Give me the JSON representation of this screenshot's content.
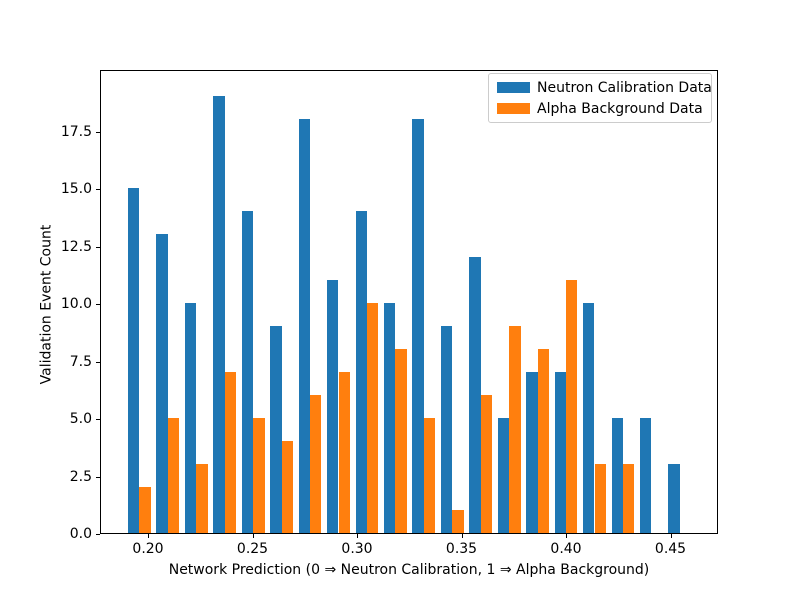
{
  "chart_data": {
    "type": "bar",
    "title": "",
    "xlabel": "Network Prediction (0 ⇒ Neutron Calibration, 1 ⇒ Alpha Background)",
    "ylabel": "Validation Event Count",
    "x_tick_values": [
      0.2,
      0.25,
      0.3,
      0.35,
      0.4,
      0.45
    ],
    "x_tick_labels": [
      "0.20",
      "0.25",
      "0.30",
      "0.35",
      "0.40",
      "0.45"
    ],
    "y_tick_values": [
      0.0,
      2.5,
      5.0,
      7.5,
      10.0,
      12.5,
      15.0,
      17.5
    ],
    "y_tick_labels": [
      "0.0",
      "2.5",
      "5.0",
      "7.5",
      "10.0",
      "12.5",
      "15.0",
      "17.5"
    ],
    "xlim": [
      0.177,
      0.4727
    ],
    "ylim": [
      0,
      20.2
    ],
    "grid": false,
    "bin_width_x": 0.005454,
    "bin_left_x": [
      0.1904,
      0.204,
      0.2176,
      0.2313,
      0.2449,
      0.2585,
      0.2721,
      0.2857,
      0.2993,
      0.3129,
      0.3265,
      0.3401,
      0.3538,
      0.3674,
      0.381,
      0.3946,
      0.4082,
      0.4218,
      0.4354,
      0.449
    ],
    "series": [
      {
        "name": "Neutron Calibration Data",
        "color": "#1f77b4",
        "values": [
          15,
          13,
          10,
          19,
          14,
          9,
          18,
          11,
          14,
          10,
          18,
          9,
          12,
          5,
          7,
          7,
          10,
          5,
          5,
          3
        ]
      },
      {
        "name": "Alpha Background Data",
        "color": "#ff7f0e",
        "values": [
          2,
          5,
          3,
          7,
          5,
          4,
          6,
          7,
          10,
          8,
          5,
          1,
          6,
          9,
          8,
          11,
          3,
          3,
          0,
          0
        ]
      }
    ],
    "legend": {
      "position": "upper right",
      "entries": [
        {
          "label": "Neutron Calibration Data",
          "color": "#1f77b4"
        },
        {
          "label": "Alpha Background Data",
          "color": "#ff7f0e"
        }
      ]
    }
  }
}
